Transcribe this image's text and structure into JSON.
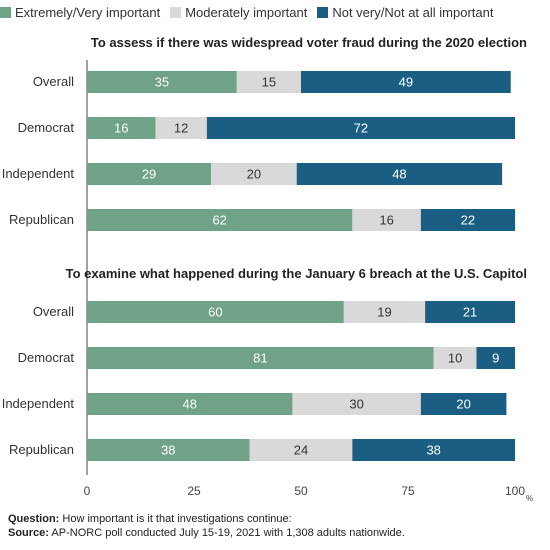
{
  "legend": [
    {
      "label": "Extremely/Very important",
      "color": "#6fa287"
    },
    {
      "label": "Moderately important",
      "color": "#d9d9d9"
    },
    {
      "label": "Not very/Not at all important",
      "color": "#1a5e84"
    }
  ],
  "chart_data": {
    "type": "bar",
    "orientation": "horizontal",
    "stacked": true,
    "xlim": [
      0,
      100
    ],
    "xticks": [
      "0",
      "25",
      "50",
      "75",
      "100"
    ],
    "x_unit": "%",
    "panels": [
      {
        "title": "To assess if there was widespread voter fraud during the 2020 election",
        "categories": [
          "Overall",
          "Democrat",
          "Independent",
          "Republican"
        ],
        "series": [
          {
            "name": "Extremely/Very important",
            "values": [
              35,
              16,
              29,
              62
            ]
          },
          {
            "name": "Moderately important",
            "values": [
              15,
              12,
              20,
              16
            ]
          },
          {
            "name": "Not very/Not at all important",
            "values": [
              49,
              72,
              48,
              22
            ]
          }
        ]
      },
      {
        "title": "To examine what happened during the January 6 breach at the U.S. Capitol",
        "categories": [
          "Overall",
          "Democrat",
          "Independent",
          "Republican"
        ],
        "series": [
          {
            "name": "Extremely/Very important",
            "values": [
              60,
              81,
              48,
              38
            ]
          },
          {
            "name": "Moderately important",
            "values": [
              19,
              10,
              30,
              24
            ]
          },
          {
            "name": "Not very/Not at all important",
            "values": [
              21,
              9,
              20,
              38
            ]
          }
        ]
      }
    ]
  },
  "footer": {
    "question_label": "Question:",
    "question_text": " How important is it that investigations continue:",
    "source_label": "Source:",
    "source_text": " AP-NORC poll conducted July 15-19, 2021 with 1,308 adults nationwide."
  }
}
